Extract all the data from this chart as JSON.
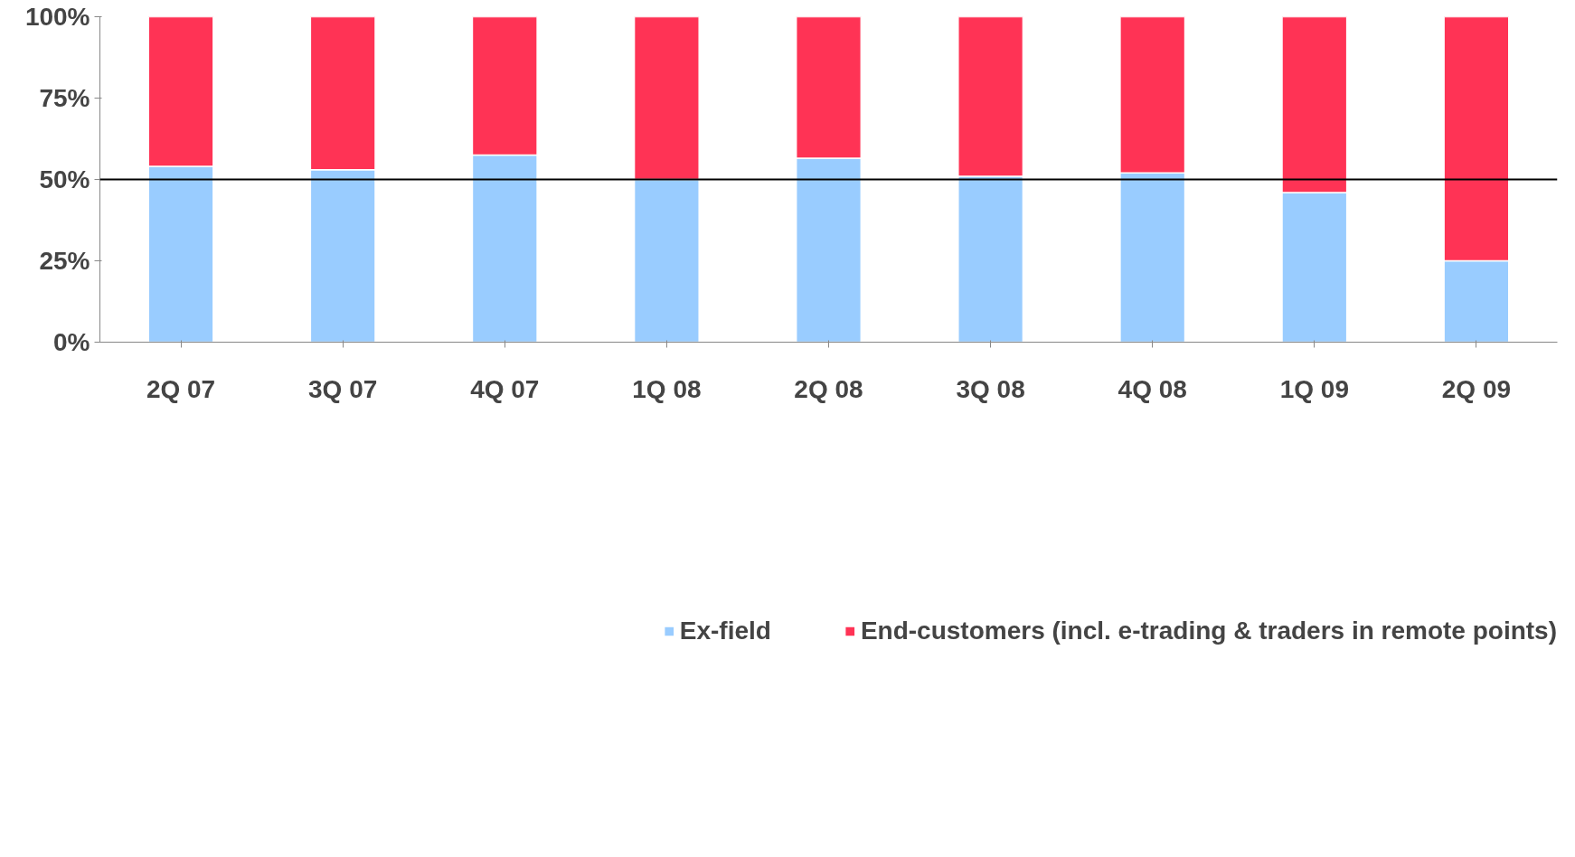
{
  "chart_data": {
    "type": "bar",
    "stacked": true,
    "categories": [
      "2Q 07",
      "3Q 07",
      "4Q 07",
      "1Q 08",
      "2Q 08",
      "3Q 08",
      "4Q 08",
      "1Q 09",
      "2Q 09"
    ],
    "series": [
      {
        "name": "Ex-field",
        "color": "#99ccff",
        "values": [
          54,
          53,
          57.5,
          50,
          56.5,
          51,
          52,
          46,
          25
        ]
      },
      {
        "name": "End-customers (incl. e-trading & traders in remote points)",
        "color": "#ff3355",
        "values": [
          46,
          47,
          42.5,
          50,
          43.5,
          49,
          48,
          54,
          75
        ]
      }
    ],
    "ylim": [
      0,
      100
    ],
    "yticks": [
      {
        "value": 0,
        "label": "0%"
      },
      {
        "value": 25,
        "label": "25%"
      },
      {
        "value": 50,
        "label": "50%"
      },
      {
        "value": 75,
        "label": "75%"
      },
      {
        "value": 100,
        "label": "100%"
      }
    ],
    "ref_lines": [
      {
        "axis": "y",
        "value": 50,
        "label": null,
        "color": "#000000"
      }
    ],
    "grid": false,
    "legend": "bottom"
  }
}
